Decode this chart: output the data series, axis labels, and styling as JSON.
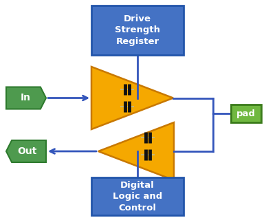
{
  "bg_color": "#ffffff",
  "blue_box_color": "#4472c4",
  "blue_box_edge": "#2255aa",
  "green_hex_color": "#4e9a4e",
  "green_hex_edge": "#2d7a2d",
  "pad_color": "#70b840",
  "pad_edge": "#3a7a1a",
  "orange_color": "#f5a800",
  "orange_edge": "#c87800",
  "line_color": "#3355bb",
  "text_color": "#ffffff",
  "mosfet_dark": "#111111",
  "mosfet_tan": "#c8b870",
  "drive_strength_text": "Drive\nStrength\nRegister",
  "digital_logic_text": "Digital\nLogic and\nControl",
  "in_text": "In",
  "out_text": "Out",
  "pad_text": "pad"
}
